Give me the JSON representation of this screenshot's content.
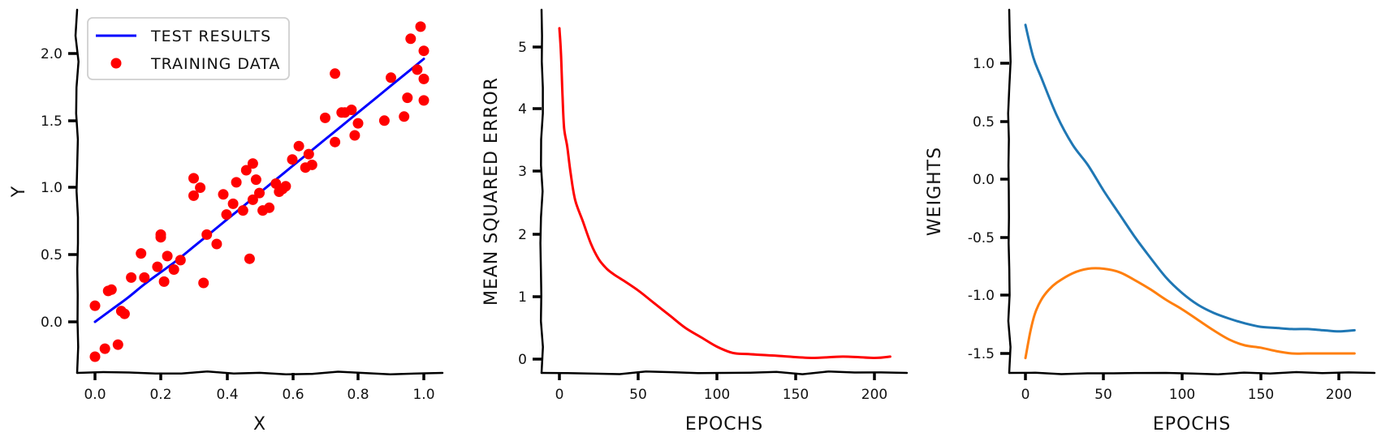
{
  "chart_data": [
    {
      "type": "scatter",
      "xlabel": "X",
      "ylabel": "Y",
      "xlim": [
        -0.05,
        1.05
      ],
      "ylim": [
        -0.38,
        2.3
      ],
      "xticks": [
        "0.0",
        "0.2",
        "0.4",
        "0.6",
        "0.8",
        "1.0"
      ],
      "yticks": [
        "0.0",
        "0.5",
        "1.0",
        "1.5",
        "2.0"
      ],
      "legend": {
        "position": "top-left",
        "entries": [
          "TEST RESULTS",
          "TRAINING DATA"
        ]
      },
      "series": [
        {
          "name": "TEST RESULTS",
          "type": "line",
          "color": "#0000ff",
          "x": [
            0.0,
            0.05,
            0.1,
            0.15,
            0.2,
            0.25,
            0.3,
            0.35,
            0.4,
            0.45,
            0.5,
            0.55,
            0.6,
            0.65,
            0.7,
            0.75,
            0.8,
            0.85,
            0.9,
            0.95,
            1.0
          ],
          "y": [
            0.0,
            0.09,
            0.18,
            0.28,
            0.37,
            0.46,
            0.56,
            0.66,
            0.76,
            0.86,
            0.96,
            1.06,
            1.16,
            1.26,
            1.36,
            1.46,
            1.56,
            1.66,
            1.76,
            1.86,
            1.96
          ]
        },
        {
          "name": "TRAINING DATA",
          "type": "scatter",
          "color": "#ff0000",
          "x": [
            0.0,
            0.0,
            0.03,
            0.04,
            0.05,
            0.07,
            0.08,
            0.09,
            0.11,
            0.14,
            0.15,
            0.19,
            0.2,
            0.2,
            0.21,
            0.22,
            0.24,
            0.26,
            0.3,
            0.3,
            0.32,
            0.33,
            0.34,
            0.37,
            0.39,
            0.4,
            0.42,
            0.43,
            0.45,
            0.46,
            0.47,
            0.48,
            0.48,
            0.49,
            0.5,
            0.51,
            0.53,
            0.55,
            0.56,
            0.57,
            0.58,
            0.6,
            0.62,
            0.64,
            0.65,
            0.66,
            0.7,
            0.73,
            0.73,
            0.75,
            0.76,
            0.78,
            0.79,
            0.8,
            0.88,
            0.9,
            0.94,
            0.95,
            0.96,
            0.98,
            0.99,
            1.0,
            1.0,
            1.0
          ],
          "y": [
            0.12,
            -0.26,
            -0.2,
            0.23,
            0.24,
            -0.17,
            0.08,
            0.06,
            0.33,
            0.51,
            0.33,
            0.41,
            0.65,
            0.63,
            0.3,
            0.49,
            0.39,
            0.46,
            1.07,
            0.94,
            1.0,
            0.29,
            0.65,
            0.58,
            0.95,
            0.8,
            0.88,
            1.04,
            0.83,
            1.13,
            0.47,
            1.18,
            0.91,
            1.06,
            0.96,
            0.83,
            0.85,
            1.03,
            0.97,
            0.99,
            1.01,
            1.21,
            1.31,
            1.15,
            1.25,
            1.17,
            1.52,
            1.85,
            1.34,
            1.56,
            1.56,
            1.58,
            1.39,
            1.48,
            1.5,
            1.82,
            1.53,
            1.67,
            2.11,
            1.88,
            2.2,
            2.02,
            1.65,
            1.81
          ]
        }
      ]
    },
    {
      "type": "line",
      "xlabel": "EPOCHS",
      "ylabel": "MEAN SQUARED ERROR",
      "xlim": [
        -10,
        220
      ],
      "ylim": [
        -0.2,
        5.6
      ],
      "xticks": [
        "0",
        "50",
        "100",
        "150",
        "200"
      ],
      "yticks": [
        "0",
        "1",
        "2",
        "3",
        "4",
        "5"
      ],
      "series": [
        {
          "color": "#ff0000",
          "x": [
            0,
            1,
            2,
            3,
            5,
            7,
            10,
            15,
            20,
            25,
            30,
            35,
            40,
            50,
            60,
            70,
            80,
            90,
            100,
            110,
            120,
            140,
            160,
            180,
            200,
            210
          ],
          "y": [
            5.3,
            4.9,
            4.2,
            3.7,
            3.4,
            3.0,
            2.55,
            2.2,
            1.85,
            1.6,
            1.45,
            1.35,
            1.27,
            1.1,
            0.9,
            0.7,
            0.5,
            0.35,
            0.2,
            0.1,
            0.08,
            0.05,
            0.02,
            0.04,
            0.02,
            0.04
          ]
        }
      ]
    },
    {
      "type": "line",
      "xlabel": "EPOCHS",
      "ylabel": "WEIGHTS",
      "xlim": [
        -10,
        220
      ],
      "ylim": [
        -1.7,
        1.45
      ],
      "xticks": [
        "0",
        "50",
        "100",
        "150",
        "200"
      ],
      "yticks": [
        "-1.5",
        "-1.0",
        "-0.5",
        "0.0",
        "0.5",
        "1.0"
      ],
      "series": [
        {
          "color": "#1f77b4",
          "x": [
            0,
            5,
            10,
            20,
            30,
            40,
            50,
            60,
            70,
            80,
            90,
            100,
            110,
            120,
            130,
            140,
            150,
            160,
            170,
            180,
            190,
            200,
            210
          ],
          "y": [
            1.33,
            1.05,
            0.88,
            0.55,
            0.3,
            0.12,
            -0.1,
            -0.3,
            -0.5,
            -0.68,
            -0.85,
            -0.98,
            -1.08,
            -1.15,
            -1.2,
            -1.24,
            -1.27,
            -1.28,
            -1.29,
            -1.29,
            -1.3,
            -1.31,
            -1.3
          ]
        },
        {
          "color": "#ff7f0e",
          "x": [
            0,
            3,
            6,
            10,
            15,
            20,
            30,
            40,
            50,
            60,
            70,
            80,
            90,
            100,
            110,
            120,
            130,
            140,
            150,
            160,
            170,
            180,
            190,
            200,
            210
          ],
          "y": [
            -1.54,
            -1.32,
            -1.16,
            -1.04,
            -0.95,
            -0.89,
            -0.81,
            -0.77,
            -0.77,
            -0.8,
            -0.87,
            -0.95,
            -1.04,
            -1.12,
            -1.21,
            -1.3,
            -1.38,
            -1.43,
            -1.45,
            -1.48,
            -1.5,
            -1.5,
            -1.5,
            -1.5,
            -1.5
          ]
        }
      ]
    }
  ]
}
